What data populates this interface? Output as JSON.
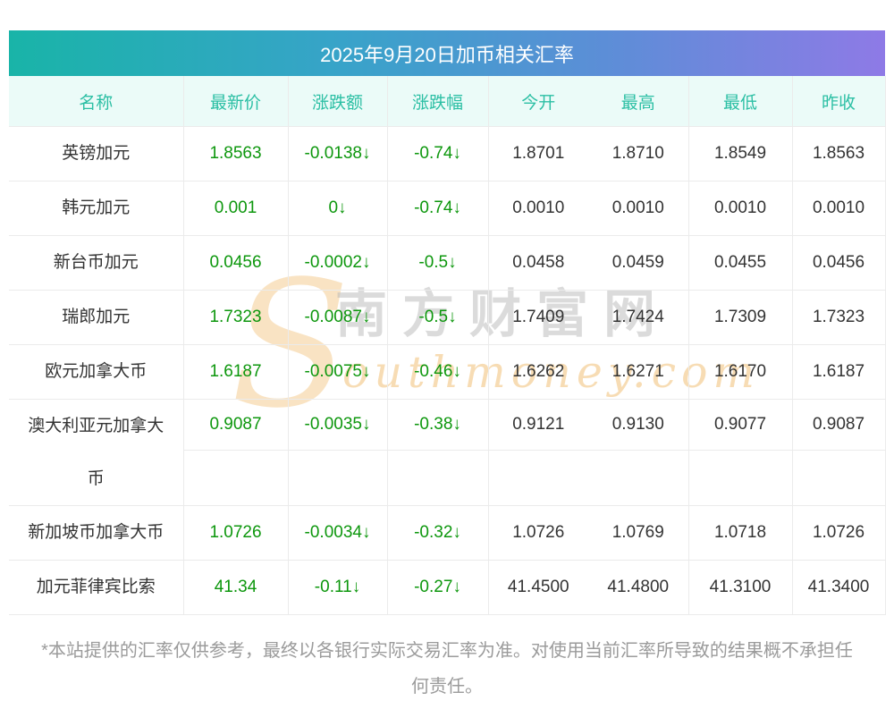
{
  "title": "2025年9月20日加币相关汇率",
  "table": {
    "headers": [
      "名称",
      "最新价",
      "涨跌额",
      "涨跌幅",
      "今开",
      "最高",
      "最低",
      "昨收"
    ],
    "rows": [
      {
        "name": "英镑加元",
        "latest": "1.8563",
        "change": "-0.0138↓",
        "change_pct": "-0.74↓",
        "open": "1.8701",
        "high": "1.8710",
        "low": "1.8549",
        "prev_close": "1.8563"
      },
      {
        "name": "韩元加元",
        "latest": "0.001",
        "change": "0↓",
        "change_pct": "-0.74↓",
        "open": "0.0010",
        "high": "0.0010",
        "low": "0.0010",
        "prev_close": "0.0010"
      },
      {
        "name": "新台币加元",
        "latest": "0.0456",
        "change": "-0.0002↓",
        "change_pct": "-0.5↓",
        "open": "0.0458",
        "high": "0.0459",
        "low": "0.0455",
        "prev_close": "0.0456"
      },
      {
        "name": "瑞郎加元",
        "latest": "1.7323",
        "change": "-0.0087↓",
        "change_pct": "-0.5↓",
        "open": "1.7409",
        "high": "1.7424",
        "low": "1.7309",
        "prev_close": "1.7323"
      },
      {
        "name": "欧元加拿大币",
        "latest": "1.6187",
        "change": "-0.0075↓",
        "change_pct": "-0.46↓",
        "open": "1.6262",
        "high": "1.6271",
        "low": "1.6170",
        "prev_close": "1.6187"
      },
      {
        "name": "澳大利亚元加拿大币",
        "latest": "0.9087",
        "change": "-0.0035↓",
        "change_pct": "-0.38↓",
        "open": "0.9121",
        "high": "0.9130",
        "low": "0.9077",
        "prev_close": "0.9087"
      },
      {
        "name": "新加坡币加拿大币",
        "latest": "1.0726",
        "change": "-0.0034↓",
        "change_pct": "-0.32↓",
        "open": "1.0726",
        "high": "1.0769",
        "low": "1.0718",
        "prev_close": "1.0726"
      },
      {
        "name": "加元菲律宾比索",
        "latest": "41.34",
        "change": "-0.11↓",
        "change_pct": "-0.27↓",
        "open": "41.4500",
        "high": "41.4800",
        "low": "41.3100",
        "prev_close": "41.3400"
      }
    ]
  },
  "watermark": {
    "s_glyph": "S",
    "cjk": "南方财富网",
    "latin": "outhmoney.com"
  },
  "footer": {
    "disclaimer": "*本站提供的汇率仅供参考，最终以各银行实际交易汇率为准。对使用当前汇率所导致的结果概不承担任何责任。"
  },
  "colors": {
    "title_gradient_start": "#19b4a8",
    "title_gradient_end": "#8e7ae6",
    "header_bg": "#ebfbf8",
    "header_text": "#2bbfa4",
    "down_green": "#0d970d",
    "value_text": "#333333",
    "disclaimer_text": "#9b9b9b",
    "divider": "#ebebeb"
  }
}
